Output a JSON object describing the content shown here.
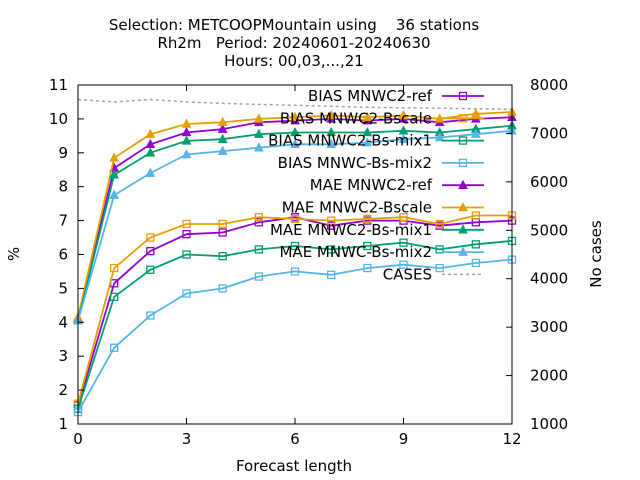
{
  "chart_data": {
    "type": "line",
    "title": [
      "Selection: METCOOPMountain using    36 stations",
      "Rh2m   Period: 20240601-20240630",
      "Hours: 00,03,...,21"
    ],
    "xlabel": "Forecast length",
    "ylabel": "%",
    "y2label": "No cases",
    "xlim": [
      0,
      12
    ],
    "ylim": [
      1,
      11
    ],
    "y2lim": [
      1000,
      8000
    ],
    "xticks": [
      0,
      3,
      6,
      9,
      12
    ],
    "yticks": [
      1,
      2,
      3,
      4,
      5,
      6,
      7,
      8,
      9,
      10,
      11
    ],
    "y2ticks": [
      1000,
      2000,
      3000,
      4000,
      5000,
      6000,
      7000,
      8000
    ],
    "legend_position": "top-right",
    "x": [
      0,
      1,
      2,
      3,
      4,
      5,
      6,
      7,
      8,
      9,
      10,
      11,
      12
    ],
    "series": [
      {
        "name": "BIAS MNWC2-ref",
        "color": "#9400d3",
        "marker": "open-square",
        "axis": "y",
        "values": [
          1.55,
          5.15,
          6.1,
          6.6,
          6.65,
          6.95,
          7.1,
          6.85,
          7.0,
          7.0,
          6.85,
          6.95,
          7.0
        ]
      },
      {
        "name": "BIAS MNWC2-Bscale",
        "color": "#e69f00",
        "marker": "open-square",
        "axis": "y",
        "values": [
          1.6,
          5.6,
          6.5,
          6.9,
          6.9,
          7.1,
          7.05,
          7.0,
          7.05,
          7.1,
          6.9,
          7.15,
          7.15
        ]
      },
      {
        "name": "BIAS MNWC2-Bs-mix1",
        "color": "#009e73",
        "marker": "open-square",
        "axis": "y",
        "values": [
          1.45,
          4.75,
          5.55,
          6.0,
          5.95,
          6.15,
          6.25,
          6.15,
          6.25,
          6.35,
          6.15,
          6.3,
          6.4
        ]
      },
      {
        "name": "BIAS MNWC-Bs-mix2",
        "color": "#56b4e9",
        "marker": "open-square",
        "axis": "y",
        "values": [
          1.35,
          3.25,
          4.2,
          4.85,
          5.0,
          5.35,
          5.5,
          5.4,
          5.6,
          5.7,
          5.6,
          5.75,
          5.85
        ]
      },
      {
        "name": "MAE MNWC2-ref",
        "color": "#9400d3",
        "marker": "filled-triangle",
        "axis": "y",
        "values": [
          4.1,
          8.55,
          9.25,
          9.6,
          9.7,
          9.9,
          9.95,
          10.0,
          9.95,
          10.0,
          9.9,
          10.0,
          10.05
        ]
      },
      {
        "name": "MAE MNWC2-Bscale",
        "color": "#e69f00",
        "marker": "filled-triangle",
        "axis": "y",
        "values": [
          4.15,
          8.85,
          9.55,
          9.85,
          9.9,
          10.0,
          10.05,
          10.1,
          10.05,
          10.1,
          10.0,
          10.15,
          10.2
        ]
      },
      {
        "name": "MAE MNWC2-Bs-mix1",
        "color": "#009e73",
        "marker": "filled-triangle",
        "axis": "y",
        "values": [
          4.05,
          8.35,
          9.0,
          9.35,
          9.4,
          9.55,
          9.6,
          9.6,
          9.6,
          9.65,
          9.6,
          9.7,
          9.8
        ]
      },
      {
        "name": "MAE MNWC-Bs-mix2",
        "color": "#56b4e9",
        "marker": "filled-triangle",
        "axis": "y",
        "values": [
          4.05,
          7.75,
          8.4,
          8.95,
          9.05,
          9.15,
          9.25,
          9.25,
          9.3,
          9.4,
          9.45,
          9.55,
          9.65
        ]
      },
      {
        "name": "CASES",
        "color": "#a0a0a0",
        "marker": "none",
        "dash": true,
        "axis": "y2",
        "values": [
          7700,
          7650,
          7700,
          7650,
          7620,
          7600,
          7580,
          7560,
          7540,
          7530,
          7520,
          7510,
          7500
        ]
      }
    ]
  }
}
